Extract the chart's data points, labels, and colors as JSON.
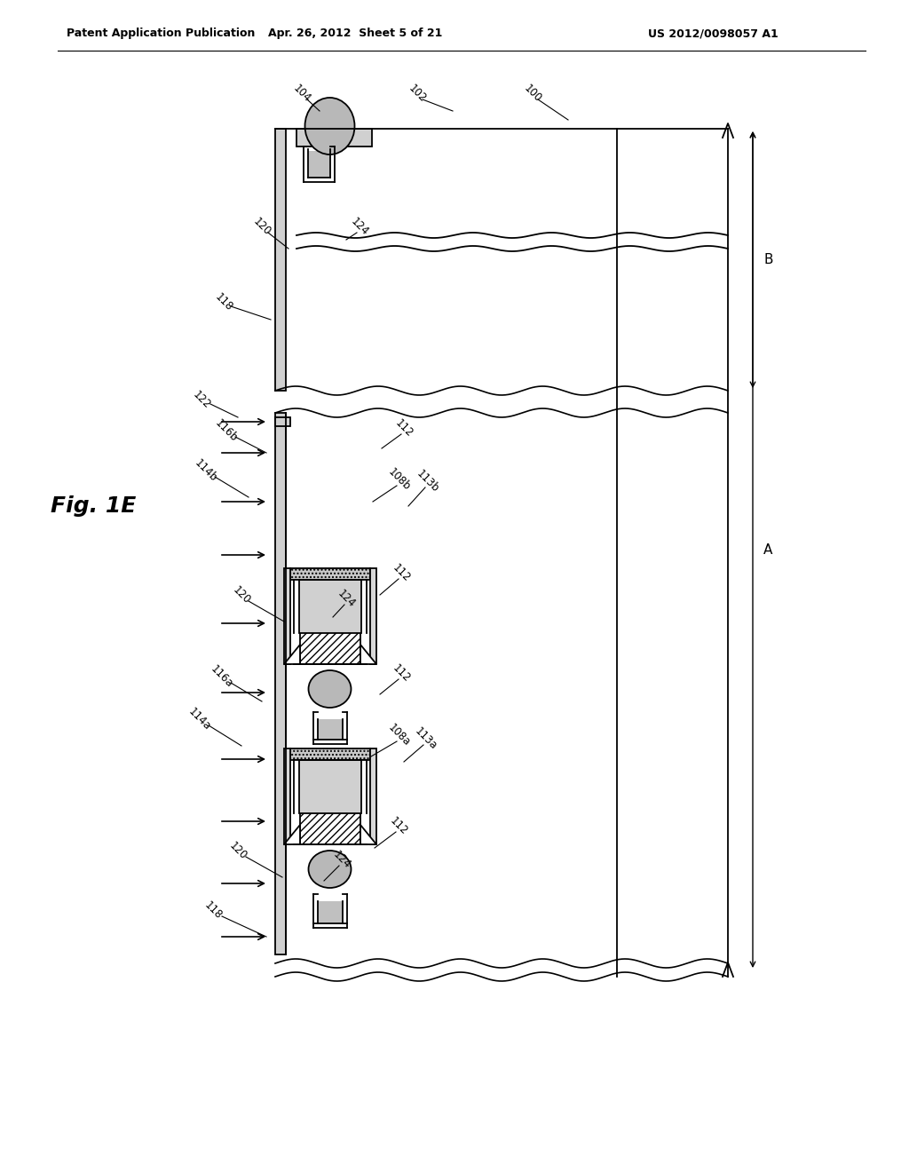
{
  "header_left": "Patent Application Publication",
  "header_center": "Apr. 26, 2012  Sheet 5 of 21",
  "header_right": "US 2012/0098057 A1",
  "fig_label": "Fig. 1E",
  "bg_color": "#ffffff",
  "lc": "#000000",
  "gray_light": "#c8c8c8",
  "gray_mid": "#b0b0b0",
  "gray_dark": "#909090",
  "hatch_fill": "#e8e8e8"
}
